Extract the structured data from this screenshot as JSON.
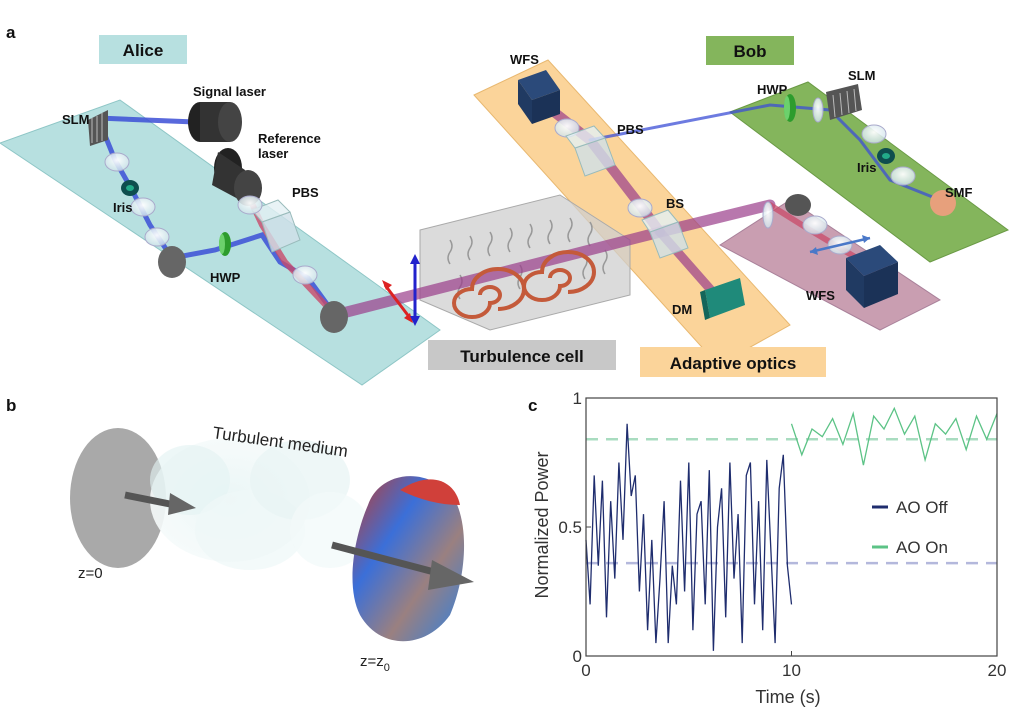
{
  "panels": {
    "a": "a",
    "b": "b",
    "c": "c"
  },
  "setup": {
    "alice": "Alice",
    "bob": "Bob",
    "turbulence_cell": "Turbulence cell",
    "adaptive_optics": "Adaptive optics",
    "alice_labels": {
      "slm": "SLM",
      "signal_laser": "Signal laser",
      "reference_laser_1": "Reference",
      "reference_laser_2": "laser",
      "pbs": "PBS",
      "iris": "Iris",
      "hwp": "HWP"
    },
    "ao_labels": {
      "wfs": "WFS",
      "pbs": "PBS",
      "bs": "BS",
      "dm": "DM"
    },
    "bob_labels": {
      "hwp": "HWP",
      "slm": "SLM",
      "iris": "Iris",
      "smf": "SMF",
      "wfs": "WFS"
    }
  },
  "propagation": {
    "medium": "Turbulent medium",
    "z_start": "z=0",
    "z_end_base": "z=z",
    "z_end_sub": "0"
  },
  "colors": {
    "alice_bg": "#b7e0e0",
    "bob_bg": "#84b55c",
    "ao_bg": "#fbd49a",
    "ao_off": "#1f2d6e",
    "ao_on": "#5cc386"
  },
  "chart_data": {
    "type": "line",
    "xlabel": "Time (s)",
    "ylabel": "Normalized Power",
    "xlim": [
      0,
      20
    ],
    "ylim": [
      0,
      1
    ],
    "xticks": [
      "0",
      "10",
      "20"
    ],
    "yticks": [
      "0",
      "0.5",
      "1"
    ],
    "legend_position": "right",
    "reference_lines": [
      {
        "series": "AO On",
        "y": 0.84
      },
      {
        "series": "AO Off",
        "y": 0.36
      }
    ],
    "series": [
      {
        "name": "AO Off",
        "x": [
          0,
          0.2,
          0.4,
          0.6,
          0.8,
          1.0,
          1.2,
          1.4,
          1.6,
          1.8,
          2.0,
          2.2,
          2.4,
          2.6,
          2.8,
          3.0,
          3.2,
          3.4,
          3.6,
          3.8,
          4.0,
          4.2,
          4.4,
          4.6,
          4.8,
          5.0,
          5.2,
          5.4,
          5.6,
          5.8,
          6.0,
          6.2,
          6.4,
          6.6,
          6.8,
          7.0,
          7.2,
          7.4,
          7.6,
          7.8,
          8.0,
          8.2,
          8.4,
          8.6,
          8.8,
          9.0,
          9.2,
          9.4,
          9.6,
          9.8,
          10.0
        ],
        "values": [
          0.45,
          0.2,
          0.7,
          0.35,
          0.68,
          0.15,
          0.6,
          0.3,
          0.75,
          0.45,
          0.9,
          0.62,
          0.7,
          0.25,
          0.55,
          0.1,
          0.45,
          0.05,
          0.3,
          0.6,
          0.05,
          0.35,
          0.2,
          0.68,
          0.25,
          0.75,
          0.1,
          0.55,
          0.6,
          0.2,
          0.72,
          0.02,
          0.5,
          0.65,
          0.15,
          0.75,
          0.3,
          0.55,
          0.05,
          0.7,
          0.75,
          0.2,
          0.6,
          0.1,
          0.76,
          0.4,
          0.05,
          0.65,
          0.78,
          0.35,
          0.2
        ]
      },
      {
        "name": "AO On",
        "x": [
          10.0,
          10.5,
          11.0,
          11.5,
          12.0,
          12.5,
          13.0,
          13.5,
          14.0,
          14.5,
          15.0,
          15.5,
          16.0,
          16.5,
          17.0,
          17.5,
          18.0,
          18.5,
          19.0,
          19.5,
          20.0
        ],
        "values": [
          0.9,
          0.78,
          0.88,
          0.85,
          0.92,
          0.82,
          0.94,
          0.74,
          0.93,
          0.88,
          0.96,
          0.86,
          0.93,
          0.76,
          0.9,
          0.86,
          0.92,
          0.8,
          0.93,
          0.84,
          0.94
        ]
      }
    ]
  }
}
